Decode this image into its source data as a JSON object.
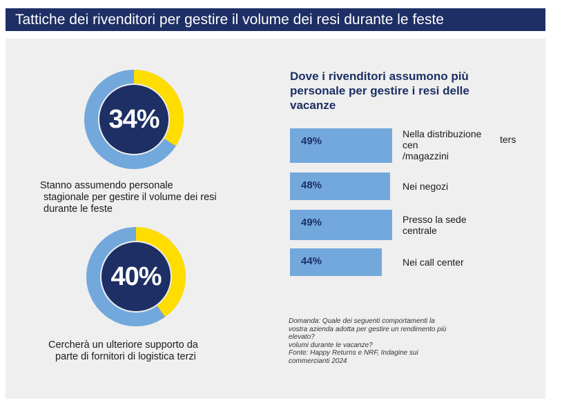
{
  "title": "Tattiche dei rivenditori per gestire il volume dei resi durante le feste",
  "colors": {
    "navy": "#1d2f64",
    "light_blue": "#72a8dc",
    "yellow": "#ffdd00",
    "panel": "#efefef"
  },
  "donuts": [
    {
      "value_label": "34%",
      "value": 34,
      "caption_line1": "Stanno assumendo personale",
      "caption_line2": "stagionale per gestire il volume dei resi",
      "caption_line3": "durante le feste"
    },
    {
      "value_label": "40%",
      "value": 40,
      "caption_line1": "Cercherà un ulteriore supporto da",
      "caption_line2": "parte di fornitori di logistica terzi"
    }
  ],
  "bars_section": {
    "title_line1": "Dove i rivenditori assumono più",
    "title_line2": "personale per gestire i resi delle",
    "title_line3": "vacanze",
    "stray_text": "ters"
  },
  "chart_data": {
    "type": "bar",
    "title": "Dove i rivenditori assumono più personale per gestire i resi delle vacanze",
    "categories": [
      "Nella distribuzione cen /magazzini",
      "Nei negozi",
      "Presso la sede centrale",
      "Nei call center"
    ],
    "values": [
      49,
      48,
      49,
      44
    ],
    "value_labels": [
      "49%",
      "48%",
      "49%",
      "44%"
    ],
    "label_lines": [
      [
        "Nella distribuzione",
        "cen",
        "/magazzini"
      ],
      [
        "Nei negozi"
      ],
      [
        "Presso la sede",
        "centrale"
      ],
      [
        "Nei call center"
      ]
    ]
  },
  "footnote": {
    "line1": "Domanda: Quale dei seguenti comportamenti la",
    "line2": "vostra azienda adotta per gestire un rendimento più",
    "line3": "elevato?",
    "line4": "volumi durante le vacanze?",
    "line5": "Fonte: Happy Returns e NRF, Indagine sui",
    "line6": "commercianti 2024"
  }
}
